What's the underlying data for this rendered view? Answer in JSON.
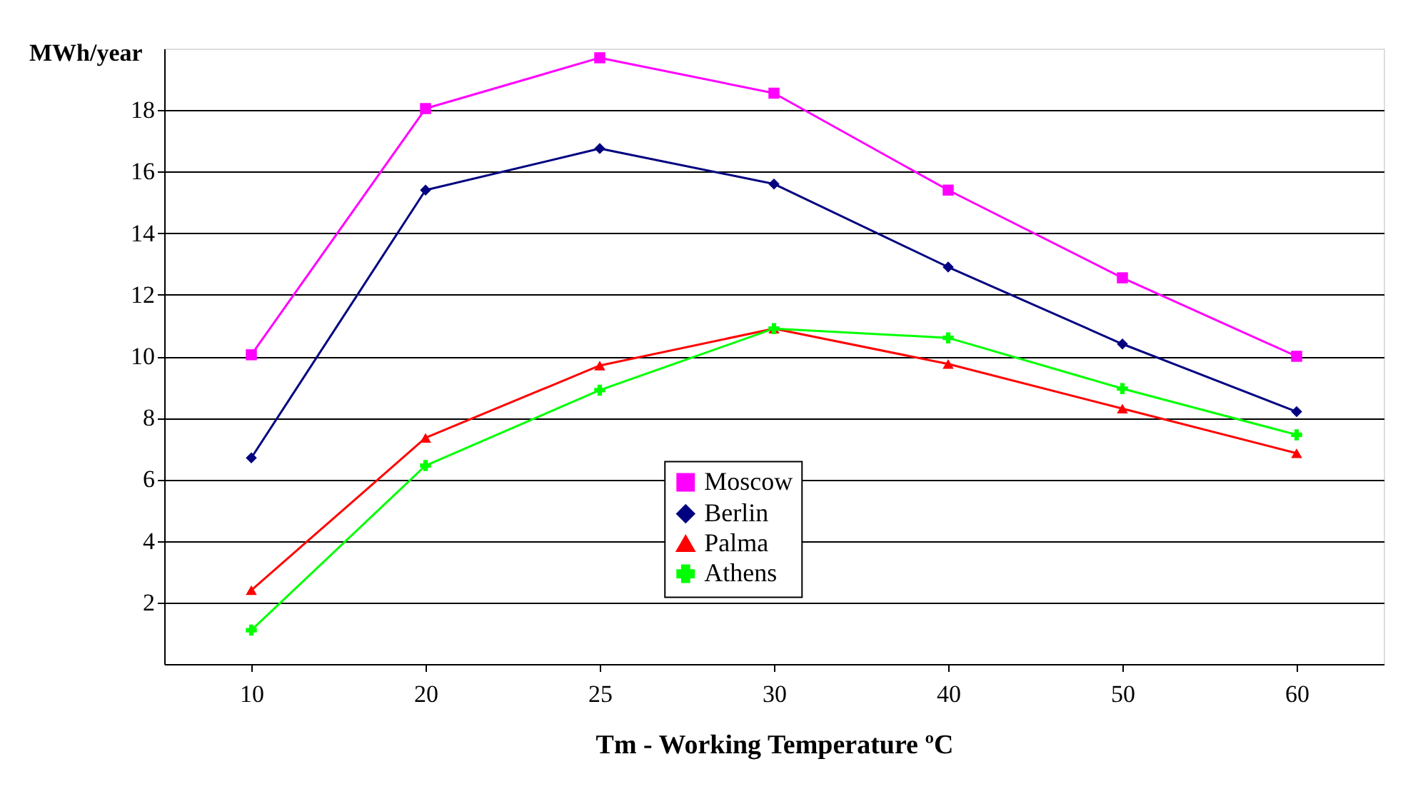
{
  "chart_data": {
    "type": "line",
    "xlabel": "Tm - Working Temperature ºC",
    "ylabel": "MWh/year",
    "categories": [
      "10",
      "20",
      "25",
      "30",
      "40",
      "50",
      "60"
    ],
    "ylim": [
      0,
      20
    ],
    "yticks": [
      2,
      4,
      6,
      8,
      10,
      12,
      14,
      16,
      18
    ],
    "grid": "y",
    "legend": "bottom",
    "series": [
      {
        "name": "Moscow",
        "color": "#ff00ff",
        "marker": "square",
        "values": [
          10.05,
          18.05,
          19.7,
          18.55,
          15.4,
          12.55,
          10.0
        ]
      },
      {
        "name": "Berlin",
        "color": "#000080",
        "marker": "diamond",
        "values": [
          6.7,
          15.4,
          16.75,
          15.6,
          12.9,
          10.4,
          8.2
        ]
      },
      {
        "name": "Palma",
        "color": "#ff0000",
        "marker": "triangle",
        "values": [
          2.4,
          7.35,
          9.7,
          10.9,
          9.75,
          8.3,
          6.85
        ]
      },
      {
        "name": "Athens",
        "color": "#00ff00",
        "marker": "cross",
        "values": [
          1.1,
          6.45,
          8.9,
          10.9,
          10.6,
          8.95,
          7.45
        ]
      }
    ]
  }
}
